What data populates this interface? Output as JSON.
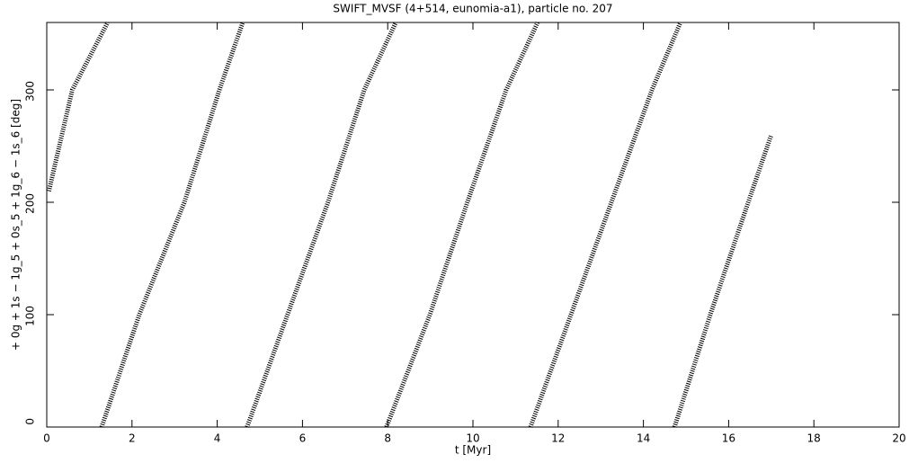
{
  "chart_data": {
    "type": "line",
    "title": "SWIFT_MVSF (4+514, eunomia-a1), particle no. 207",
    "xlabel": "t [Myr]",
    "ylabel": "+ 0g + 1s − 1g_5 + 0s_5 + 1g_6 − 1s_6 [deg]",
    "xlim": [
      0,
      20
    ],
    "xticks": [
      0,
      2,
      4,
      6,
      8,
      10,
      12,
      14,
      16,
      18,
      20
    ],
    "ylim": [
      0,
      360
    ],
    "yticks": [
      0,
      100,
      200,
      300
    ],
    "color": "#000000",
    "x": [
      0.05,
      0.6,
      1.43,
      null,
      1.29,
      2.17,
      3.23,
      4.05,
      4.6,
      null,
      4.7,
      5.65,
      6.6,
      7.45,
      8.19,
      null,
      7.97,
      8.99,
      9.87,
      10.78,
      11.52,
      null,
      11.35,
      12.3,
      13.25,
      14.2,
      14.87,
      null,
      14.73,
      15.57,
      16.46,
      17.0
    ],
    "values": [
      210,
      300,
      360,
      null,
      0,
      100,
      200,
      300,
      360,
      null,
      0,
      100,
      200,
      300,
      360,
      null,
      0,
      100,
      200,
      300,
      360,
      null,
      0,
      100,
      200,
      300,
      360,
      null,
      0,
      100,
      200,
      260
    ]
  }
}
